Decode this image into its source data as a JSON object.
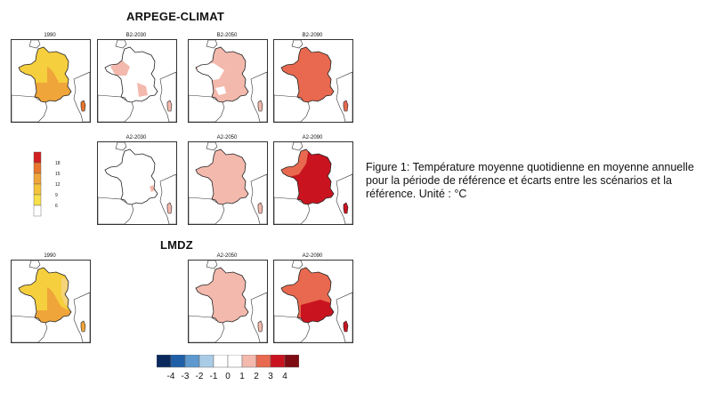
{
  "titles": {
    "arpege": "ARPEGE-CLIMAT",
    "lmdz": "LMDZ"
  },
  "panels": [
    {
      "id": "arpege-1990",
      "label": "1990"
    },
    {
      "id": "arpege-b2-2030",
      "label": "B2-2030"
    },
    {
      "id": "arpege-b2-2050",
      "label": "B2-2050"
    },
    {
      "id": "arpege-b2-2090",
      "label": "B2-2090"
    },
    {
      "id": "arpege-a2-2030",
      "label": "A2-2030"
    },
    {
      "id": "arpege-a2-2050",
      "label": "A2-2050"
    },
    {
      "id": "arpege-a2-2090",
      "label": "A2-2090"
    },
    {
      "id": "lmdz-1990",
      "label": "1990"
    },
    {
      "id": "lmdz-a2-2050",
      "label": "A2-2050"
    },
    {
      "id": "lmdz-a2-2090",
      "label": "A2-2090"
    }
  ],
  "abs_legend": {
    "ticks": [
      "18",
      "15",
      "12",
      "9",
      "6"
    ],
    "colors": [
      "#ffffff",
      "#f7e04a",
      "#f5c33a",
      "#f0a53a",
      "#e8762e",
      "#d21f1f"
    ]
  },
  "anomaly_legend": {
    "ticks": [
      "-4",
      "-3",
      "-2",
      "-1",
      "0",
      "1",
      "2",
      "3",
      "4"
    ],
    "colors": [
      "#0a2a5e",
      "#1f5fa8",
      "#5d98cf",
      "#a9cce6",
      "#ffffff",
      "#ffffff",
      "#f4b9ad",
      "#e8694f",
      "#c91420",
      "#7e0c12"
    ]
  },
  "caption": "Figure 1: Température moyenne quotidienne en moyenne annuelle pour la période de référence et écarts entre les scénarios et la référence. Unité : °C"
}
